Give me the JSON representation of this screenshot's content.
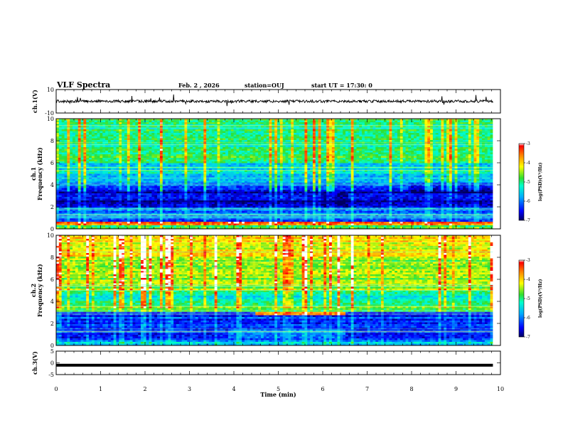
{
  "chart_data": {
    "type": "heatmap",
    "title": "VLF Spectra",
    "date": "Feb. 2 , 2026",
    "station": "station=OUJ",
    "start_ut": "start UT =   17:30: 0",
    "x_axis": {
      "label": "Time (min)",
      "range": [
        0,
        10
      ],
      "ticks": [
        "0",
        "1",
        "2",
        "3",
        "4",
        "5",
        "6",
        "7",
        "8",
        "9",
        "10"
      ]
    },
    "panels": [
      {
        "id": "ch1-waveform",
        "type": "line",
        "ylabel": "ch.1(V)",
        "ylim": [
          -10,
          10
        ],
        "yticks": [
          "10",
          "-10"
        ],
        "baseline": 0,
        "color": "#000000"
      },
      {
        "id": "ch1-spectrogram",
        "type": "heatmap",
        "ylabel_top": "ch.1",
        "ylabel": "Frequency (kHz)",
        "ylim": [
          0,
          10
        ],
        "yticks": [
          "0",
          "2",
          "4",
          "6",
          "8",
          "10"
        ],
        "colorbar": {
          "label": "log(PSD)(V²/Hz)",
          "range": [
            -7,
            -3
          ],
          "ticks": [
            "-3",
            "-4",
            "-5",
            "-6",
            "-7"
          ]
        }
      },
      {
        "id": "ch2-spectrogram",
        "type": "heatmap",
        "ylabel_top": "ch.2",
        "ylabel": "Frequency (kHz)",
        "ylim": [
          0,
          10
        ],
        "yticks": [
          "0",
          "2",
          "4",
          "6",
          "8",
          "10"
        ],
        "colorbar": {
          "label": "log(PSD)(V²/Hz)",
          "range": [
            -7,
            -3
          ],
          "ticks": [
            "-3",
            "-4",
            "-5",
            "-6",
            "-7"
          ]
        }
      },
      {
        "id": "ch3-waveform",
        "type": "line",
        "ylabel": "ch.3(V)",
        "ylim": [
          -5,
          5
        ],
        "yticks": [
          "5",
          "0",
          "-5"
        ],
        "baseline": -1,
        "color": "#000000"
      }
    ]
  }
}
